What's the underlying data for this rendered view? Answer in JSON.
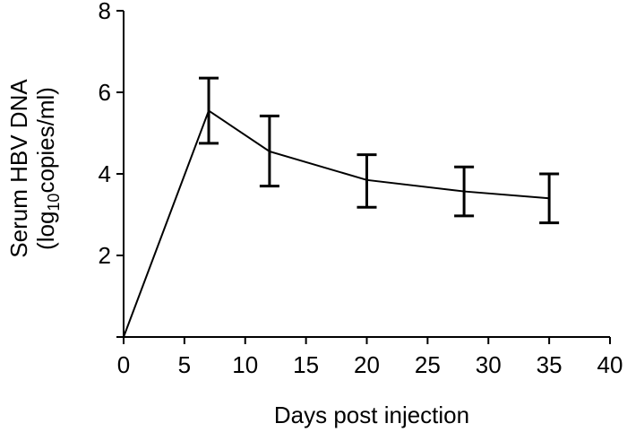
{
  "chart_data": {
    "type": "line",
    "title": "",
    "xlabel": "Days post injection",
    "ylabel_line1": "Serum HBV DNA",
    "ylabel_line2_prefix": "(log",
    "ylabel_line2_sub": "10",
    "ylabel_line2_suffix": "copies/ml)",
    "xlim": [
      0,
      40
    ],
    "ylim": [
      0,
      8
    ],
    "xticks": [
      0,
      5,
      10,
      15,
      20,
      25,
      30,
      35,
      40
    ],
    "xtick_labels": [
      "0",
      "5",
      "10",
      "15",
      "20",
      "25",
      "30",
      "35",
      "40"
    ],
    "yticks": [
      2,
      4,
      6,
      8
    ],
    "ytick_labels": [
      "2",
      "4",
      "6",
      "8"
    ],
    "grid": false,
    "series": [
      {
        "name": "Serum HBV DNA",
        "x": [
          0,
          7,
          12,
          20,
          28,
          35
        ],
        "y": [
          0.0,
          5.55,
          4.55,
          3.85,
          3.57,
          3.4
        ],
        "err_low": [
          null,
          4.75,
          3.7,
          3.18,
          2.97,
          2.8
        ],
        "err_high": [
          null,
          6.35,
          5.42,
          4.47,
          4.17,
          4.0
        ]
      }
    ]
  }
}
